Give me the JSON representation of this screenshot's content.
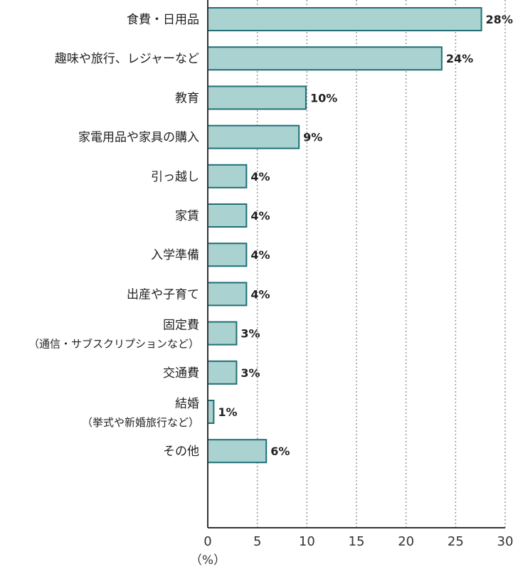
{
  "chart_data": {
    "type": "bar",
    "orientation": "horizontal",
    "categories": [
      [
        "食費・日用品"
      ],
      [
        "趣味や旅行、レジャーなど"
      ],
      [
        "教育"
      ],
      [
        "家電用品や家具の購入"
      ],
      [
        "引っ越し"
      ],
      [
        "家賃"
      ],
      [
        "入学準備"
      ],
      [
        "出産や子育て"
      ],
      [
        "固定費",
        "（通信・サブスクリプションなど）"
      ],
      [
        "交通費"
      ],
      [
        "結婚",
        "（挙式や新婚旅行など）"
      ],
      [
        "その他"
      ]
    ],
    "values": [
      27.6,
      23.6,
      9.9,
      9.2,
      3.9,
      3.9,
      3.9,
      3.9,
      2.9,
      2.9,
      0.6,
      5.9
    ],
    "value_labels": [
      "28%",
      "24%",
      "10%",
      "9%",
      "4%",
      "4%",
      "4%",
      "4%",
      "3%",
      "3%",
      "1%",
      "6%"
    ],
    "xlim": [
      0,
      30
    ],
    "xticks": [
      0,
      5,
      10,
      15,
      20,
      25,
      30
    ],
    "xlabel": "（%）",
    "grid": "vertical-dotted",
    "bar_fill": "#a9d2d1",
    "bar_stroke": "#1f6f76",
    "axis_color": "#333333",
    "grid_color": "#999999"
  }
}
